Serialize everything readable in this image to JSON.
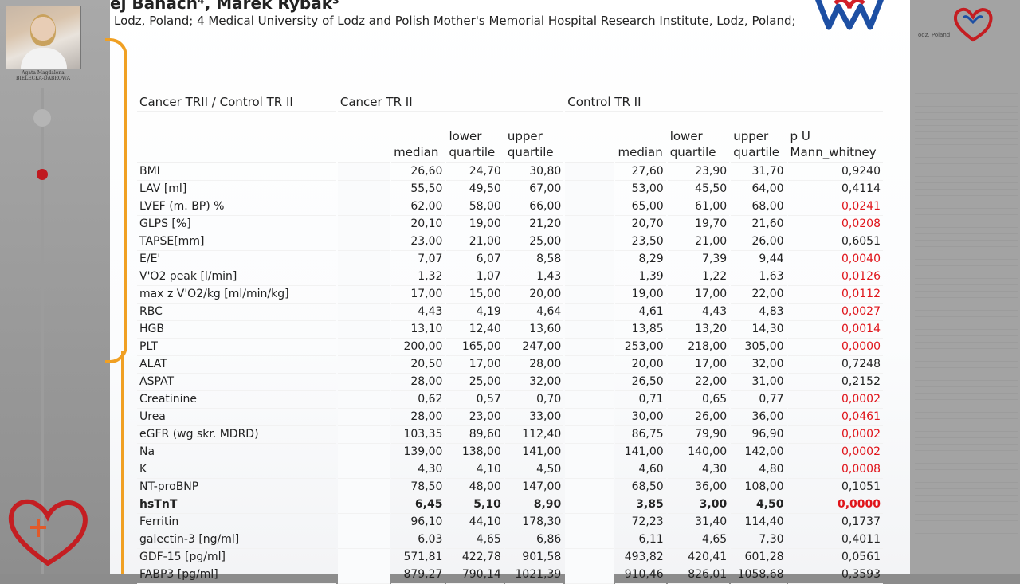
{
  "slide": {
    "authors": "ej Banach⁴, Marek Rybak³",
    "affiliation": "Lodz, Poland; 4 Medical University of Lodz and Polish Mother's Memorial Hospital Research Institute, Lodz, Poland;"
  },
  "presenter": {
    "name_line1": "Agata Magdalena",
    "name_line2": "BIELECKA-DABROWA"
  },
  "right_panel": {
    "address_fragment": "odz, Poland;"
  },
  "colors": {
    "significant": "#e0141a",
    "accent_orange": "#f0a023",
    "logo_blue": "#1d4fa3",
    "logo_red": "#d21f28"
  },
  "table": {
    "group_headers": [
      "Cancer TRII / Control TR II",
      "Cancer TR II",
      "Control TR II"
    ],
    "sub_headers": {
      "median": "median",
      "lower_line1": "lower",
      "lower_line2": "quartile",
      "upper_line1": "upper",
      "upper_line2": "quartile",
      "p_line1": "p U",
      "p_line2": "Mann_whitney"
    },
    "rows": [
      {
        "label": "BMI",
        "c_med": "26,60",
        "c_lq": "24,70",
        "c_uq": "30,80",
        "k_med": "27,60",
        "k_lq": "23,90",
        "k_uq": "31,70",
        "p": "0,9240",
        "sig": false,
        "bold": false
      },
      {
        "label": "LAV [ml]",
        "c_med": "55,50",
        "c_lq": "49,50",
        "c_uq": "67,00",
        "k_med": "53,00",
        "k_lq": "45,50",
        "k_uq": "64,00",
        "p": "0,4114",
        "sig": false,
        "bold": false
      },
      {
        "label": "LVEF (m. BP) %",
        "c_med": "62,00",
        "c_lq": "58,00",
        "c_uq": "66,00",
        "k_med": "65,00",
        "k_lq": "61,00",
        "k_uq": "68,00",
        "p": "0,0241",
        "sig": true,
        "bold": false
      },
      {
        "label": "GLPS [%]",
        "c_med": "20,10",
        "c_lq": "19,00",
        "c_uq": "21,20",
        "k_med": "20,70",
        "k_lq": "19,70",
        "k_uq": "21,60",
        "p": "0,0208",
        "sig": true,
        "bold": false
      },
      {
        "label": "TAPSE[mm]",
        "c_med": "23,00",
        "c_lq": "21,00",
        "c_uq": "25,00",
        "k_med": "23,50",
        "k_lq": "21,00",
        "k_uq": "26,00",
        "p": "0,6051",
        "sig": false,
        "bold": false
      },
      {
        "label": "E/E'",
        "c_med": "7,07",
        "c_lq": "6,07",
        "c_uq": "8,58",
        "k_med": "8,29",
        "k_lq": "7,39",
        "k_uq": "9,44",
        "p": "0,0040",
        "sig": true,
        "bold": false
      },
      {
        "label": "V'O2 peak [l/min]",
        "c_med": "1,32",
        "c_lq": "1,07",
        "c_uq": "1,43",
        "k_med": "1,39",
        "k_lq": "1,22",
        "k_uq": "1,63",
        "p": "0,0126",
        "sig": true,
        "bold": false
      },
      {
        "label": "max z V'O2/kg [ml/min/kg]",
        "c_med": "17,00",
        "c_lq": "15,00",
        "c_uq": "20,00",
        "k_med": "19,00",
        "k_lq": "17,00",
        "k_uq": "22,00",
        "p": "0,0112",
        "sig": true,
        "bold": false
      },
      {
        "label": "RBC",
        "c_med": "4,43",
        "c_lq": "4,19",
        "c_uq": "4,64",
        "k_med": "4,61",
        "k_lq": "4,43",
        "k_uq": "4,83",
        "p": "0,0027",
        "sig": true,
        "bold": false
      },
      {
        "label": "HGB",
        "c_med": "13,10",
        "c_lq": "12,40",
        "c_uq": "13,60",
        "k_med": "13,85",
        "k_lq": "13,20",
        "k_uq": "14,30",
        "p": "0,0014",
        "sig": true,
        "bold": false
      },
      {
        "label": "PLT",
        "c_med": "200,00",
        "c_lq": "165,00",
        "c_uq": "247,00",
        "k_med": "253,00",
        "k_lq": "218,00",
        "k_uq": "305,00",
        "p": "0,0000",
        "sig": true,
        "bold": false
      },
      {
        "label": "ALAT",
        "c_med": "20,50",
        "c_lq": "17,00",
        "c_uq": "28,00",
        "k_med": "20,00",
        "k_lq": "17,00",
        "k_uq": "32,00",
        "p": "0,7248",
        "sig": false,
        "bold": false
      },
      {
        "label": "ASPAT",
        "c_med": "28,00",
        "c_lq": "25,00",
        "c_uq": "32,00",
        "k_med": "26,50",
        "k_lq": "22,00",
        "k_uq": "31,00",
        "p": "0,2152",
        "sig": false,
        "bold": false
      },
      {
        "label": "Creatinine",
        "c_med": "0,62",
        "c_lq": "0,57",
        "c_uq": "0,70",
        "k_med": "0,71",
        "k_lq": "0,65",
        "k_uq": "0,77",
        "p": "0,0002",
        "sig": true,
        "bold": false
      },
      {
        "label": "Urea",
        "c_med": "28,00",
        "c_lq": "23,00",
        "c_uq": "33,00",
        "k_med": "30,00",
        "k_lq": "26,00",
        "k_uq": "36,00",
        "p": "0,0461",
        "sig": true,
        "bold": false
      },
      {
        "label": "eGFR (wg skr. MDRD)",
        "c_med": "103,35",
        "c_lq": "89,60",
        "c_uq": "112,40",
        "k_med": "86,75",
        "k_lq": "79,90",
        "k_uq": "96,90",
        "p": "0,0002",
        "sig": true,
        "bold": false
      },
      {
        "label": "Na",
        "c_med": "139,00",
        "c_lq": "138,00",
        "c_uq": "141,00",
        "k_med": "141,00",
        "k_lq": "140,00",
        "k_uq": "142,00",
        "p": "0,0002",
        "sig": true,
        "bold": false
      },
      {
        "label": "K",
        "c_med": "4,30",
        "c_lq": "4,10",
        "c_uq": "4,50",
        "k_med": "4,60",
        "k_lq": "4,30",
        "k_uq": "4,80",
        "p": "0,0008",
        "sig": true,
        "bold": false
      },
      {
        "label": "NT-proBNP",
        "c_med": "78,50",
        "c_lq": "48,00",
        "c_uq": "147,00",
        "k_med": "68,50",
        "k_lq": "36,00",
        "k_uq": "108,00",
        "p": "0,1051",
        "sig": false,
        "bold": false
      },
      {
        "label": "hsTnT",
        "c_med": "6,45",
        "c_lq": "5,10",
        "c_uq": "8,90",
        "k_med": "3,85",
        "k_lq": "3,00",
        "k_uq": "4,50",
        "p": "0,0000",
        "sig": true,
        "bold": true
      },
      {
        "label": "Ferritin",
        "c_med": "96,10",
        "c_lq": "44,10",
        "c_uq": "178,30",
        "k_med": "72,23",
        "k_lq": "31,40",
        "k_uq": "114,40",
        "p": "0,1737",
        "sig": false,
        "bold": false
      },
      {
        "label": "galectin-3 [ng/ml]",
        "c_med": "6,03",
        "c_lq": "4,65",
        "c_uq": "6,86",
        "k_med": "6,11",
        "k_lq": "4,65",
        "k_uq": "7,30",
        "p": "0,4011",
        "sig": false,
        "bold": false
      },
      {
        "label": "GDF-15 [pg/ml]",
        "c_med": "571,81",
        "c_lq": "422,78",
        "c_uq": "901,58",
        "k_med": "493,82",
        "k_lq": "420,41",
        "k_uq": "601,28",
        "p": "0,0561",
        "sig": false,
        "bold": false
      },
      {
        "label": "FABP3 [pg/ml]",
        "c_med": "879,27",
        "c_lq": "790,14",
        "c_uq": "1021,39",
        "k_med": "910,46",
        "k_lq": "826,01",
        "k_uq": "1058,68",
        "p": "0,3593",
        "sig": false,
        "bold": false
      }
    ]
  }
}
